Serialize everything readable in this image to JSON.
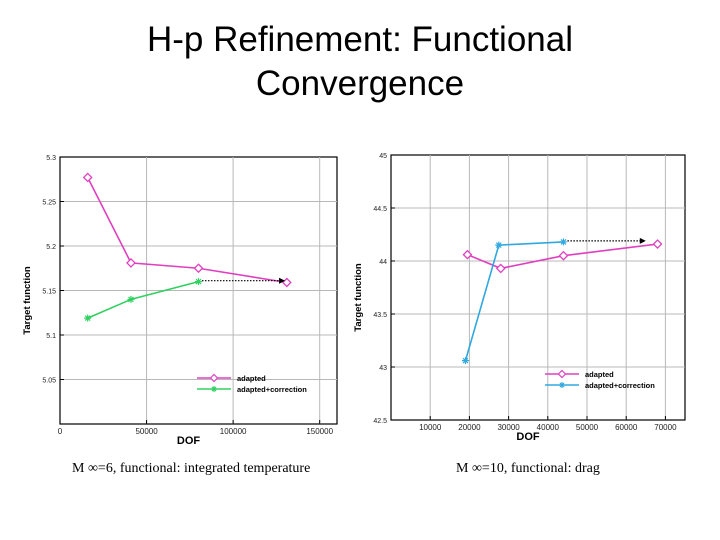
{
  "title": {
    "line1": "H-p Refinement: Functional",
    "line2": "Convergence"
  },
  "captions": {
    "left": "M ∞=6, functional: integrated temperature",
    "right": "M ∞=10, functional: drag"
  },
  "colors": {
    "adapted": "#e040c0",
    "correction": "#30d060",
    "correction2": "#30a8e0"
  },
  "chart_data": [
    {
      "type": "line",
      "xlabel": "DOF",
      "ylabel": "Target function",
      "xlim": [
        0,
        160000
      ],
      "ylim": [
        5.0,
        5.3
      ],
      "xticks": [
        0,
        50000,
        100000,
        150000
      ],
      "xticklabels": [
        "0",
        "50000",
        "100000",
        "150000"
      ],
      "yticks": [
        5.05,
        5.1,
        5.15,
        5.2,
        5.25,
        5.3
      ],
      "yticklabels": [
        "5.05",
        "5.1",
        "5.15",
        "5.2",
        "5.25",
        "5.3"
      ],
      "grid": true,
      "legend": "bottom-right",
      "series": [
        {
          "name": "adapted",
          "marker": "diamond",
          "color": "#e040c0",
          "x": [
            16000,
            41000,
            80000,
            131000
          ],
          "y": [
            5.277,
            5.181,
            5.175,
            5.159
          ]
        },
        {
          "name": "adapted+correction",
          "marker": "star",
          "color": "#30d060",
          "x": [
            16000,
            41000,
            80000
          ],
          "y": [
            5.119,
            5.14,
            5.16
          ]
        }
      ],
      "arrow": {
        "from": [
          82000,
          5.161
        ],
        "to": [
          130000,
          5.161
        ]
      }
    },
    {
      "type": "line",
      "xlabel": "DOF",
      "ylabel": "Target function",
      "xlim": [
        0,
        75000
      ],
      "ylim": [
        42.5,
        45
      ],
      "xticks": [
        10000,
        20000,
        30000,
        40000,
        50000,
        60000,
        70000
      ],
      "xticklabels": [
        "10000",
        "20000",
        "30000",
        "40000",
        "50000",
        "60000",
        "70000"
      ],
      "yticks": [
        42.5,
        43,
        43.5,
        44,
        44.5,
        45
      ],
      "yticklabels": [
        "42.5",
        "43",
        "43.5",
        "44",
        "44.5",
        "45"
      ],
      "grid": true,
      "legend": "bottom-right",
      "series": [
        {
          "name": "adapted",
          "marker": "diamond",
          "color": "#e040c0",
          "x": [
            19500,
            28000,
            44000,
            68000
          ],
          "y": [
            44.06,
            43.93,
            44.05,
            44.16
          ]
        },
        {
          "name": "adapted+correction",
          "marker": "star",
          "color": "#30a8e0",
          "x": [
            19000,
            27500,
            44000
          ],
          "y": [
            43.06,
            44.15,
            44.18
          ]
        }
      ],
      "arrow": {
        "from": [
          45000,
          44.19
        ],
        "to": [
          65000,
          44.19
        ]
      }
    }
  ]
}
